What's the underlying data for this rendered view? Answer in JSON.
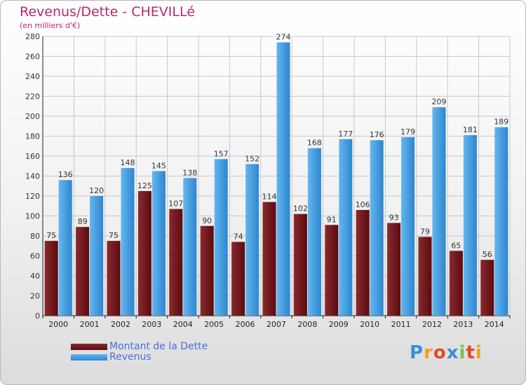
{
  "title": "Revenus/Dette - CHEVILLé",
  "subtitle": "(en milliers d'€)",
  "colors": {
    "dette": "#6b1216",
    "revenus": "#3a95da",
    "title": "#b52a6a",
    "legend_text": "#4b6ee0"
  },
  "chart_data": {
    "type": "bar",
    "title": "Revenus/Dette - CHEVILLé",
    "subtitle": "(en milliers d'€)",
    "categories": [
      "2000",
      "2001",
      "2002",
      "2003",
      "2004",
      "2005",
      "2006",
      "2007",
      "2008",
      "2009",
      "2010",
      "2011",
      "2012",
      "2013",
      "2014"
    ],
    "series": [
      {
        "name": "Montant de la Dette",
        "values": [
          75,
          89,
          75,
          125,
          107,
          90,
          74,
          114,
          102,
          91,
          106,
          93,
          79,
          65,
          56
        ]
      },
      {
        "name": "Revenus",
        "values": [
          136,
          120,
          148,
          145,
          138,
          157,
          152,
          274,
          168,
          177,
          176,
          179,
          209,
          181,
          189
        ]
      }
    ],
    "ylim": [
      0,
      280
    ],
    "yticks": [
      0,
      20,
      40,
      60,
      80,
      100,
      120,
      140,
      160,
      180,
      200,
      220,
      240,
      260,
      280
    ],
    "grid": true,
    "legend_position": "bottom-left"
  },
  "legend": {
    "dette_label": "Montant de la Dette",
    "revenus_label": "Revenus"
  },
  "logo": {
    "letters": [
      "P",
      "r",
      "o",
      "x",
      "i",
      "t",
      "i"
    ],
    "colors": [
      "#3b8fd6",
      "#f0a020",
      "#e04a2a",
      "#3b8fd6",
      "#7cc242",
      "#e04a2a",
      "#f0a020"
    ]
  }
}
